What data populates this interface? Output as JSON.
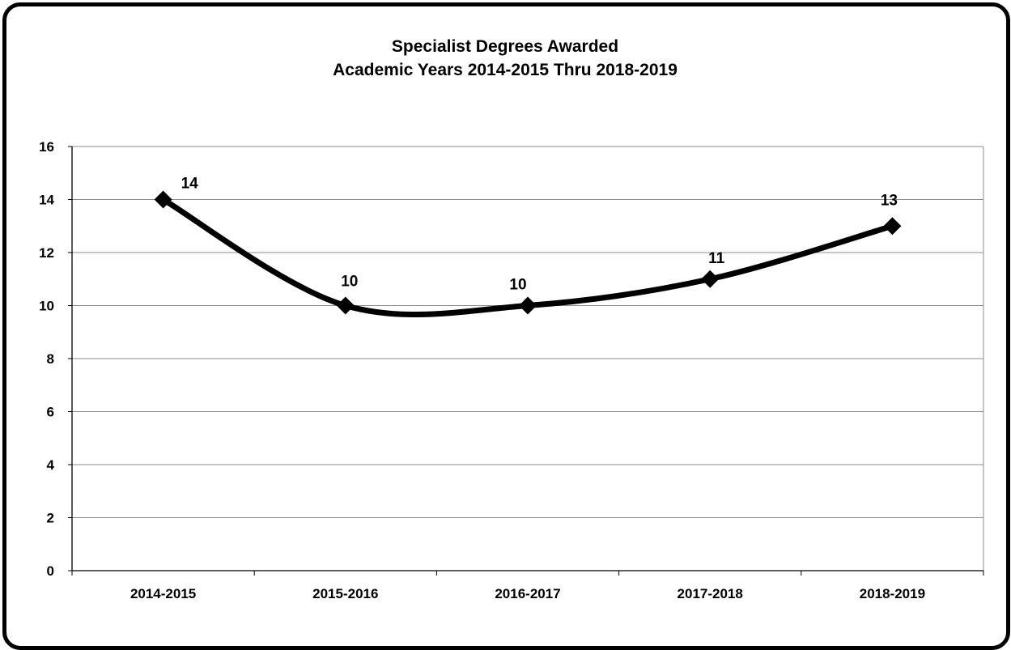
{
  "chart_data": {
    "type": "line",
    "title": "Specialist Degrees Awarded",
    "subtitle": "Academic Years 2014-2015 Thru 2018-2019",
    "xlabel": "",
    "ylabel": "",
    "categories": [
      "2014-2015",
      "2015-2016",
      "2016-2017",
      "2017-2018",
      "2018-2019"
    ],
    "series": [
      {
        "values": [
          14,
          10,
          10,
          11,
          13
        ],
        "color": "#000000"
      }
    ],
    "data_labels": [
      "14",
      "10",
      "10",
      "11",
      "13"
    ],
    "y_ticks": [
      0,
      2,
      4,
      6,
      8,
      10,
      12,
      14,
      16
    ],
    "ylim": [
      0,
      16
    ],
    "grid": true,
    "smooth": true,
    "marker": "diamond",
    "legend": "none"
  }
}
